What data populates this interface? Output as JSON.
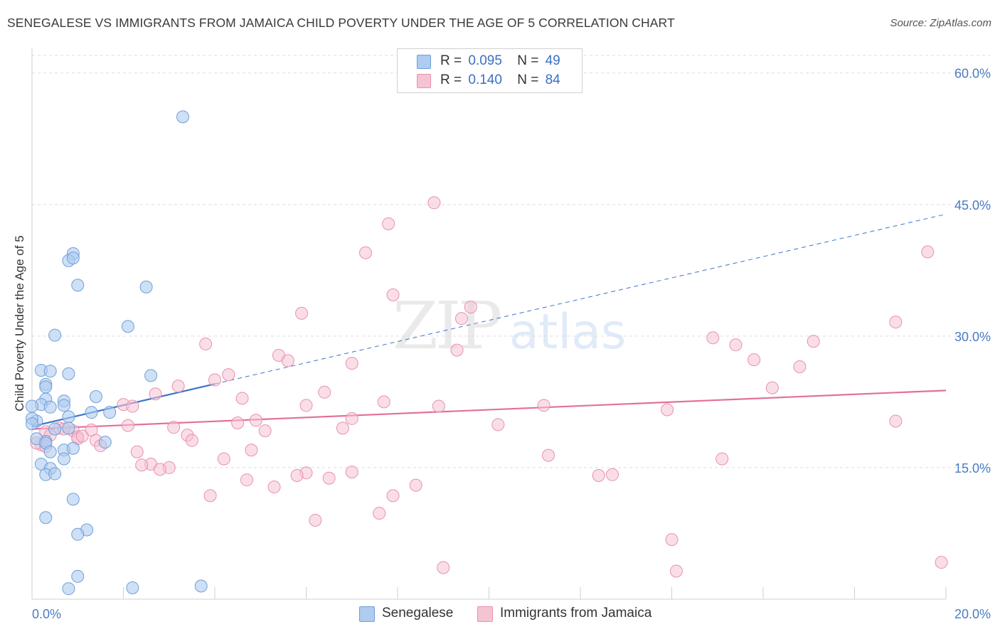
{
  "title": "SENEGALESE VS IMMIGRANTS FROM JAMAICA CHILD POVERTY UNDER THE AGE OF 5 CORRELATION CHART",
  "source": "Source: ZipAtlas.com",
  "watermark": {
    "zip": "ZIP",
    "atlas": "atlas"
  },
  "legend": {
    "row1": {
      "r_label": "R =",
      "r_value": "0.095",
      "n_label": "N =",
      "n_value": "49"
    },
    "row2": {
      "r_label": "R =",
      "r_value": "0.140",
      "n_label": "N =",
      "n_value": "84"
    }
  },
  "bottom_legend": {
    "series1": "Senegalese",
    "series2": "Immigrants from Jamaica"
  },
  "colors": {
    "blue_fill": "#aecbf0",
    "blue_stroke": "#6f9fd8",
    "blue_line": "#3b74c9",
    "pink_fill": "#f6c3d3",
    "pink_stroke": "#e891ad",
    "pink_line": "#e2709a",
    "tick_text": "#4a7cc4",
    "grid": "#dddddd"
  },
  "chart_data": {
    "type": "scatter",
    "title": "SENEGALESE VS IMMIGRANTS FROM JAMAICA CHILD POVERTY UNDER THE AGE OF 5 CORRELATION CHART",
    "xlabel": "",
    "ylabel": "Child Poverty Under the Age of 5",
    "xlim": [
      0,
      20
    ],
    "ylim": [
      0,
      62
    ],
    "x_tick_labels": [
      "0.0%",
      "20.0%"
    ],
    "y_ticks": [
      15,
      30,
      45,
      60
    ],
    "y_tick_labels": [
      "15.0%",
      "30.0%",
      "45.0%",
      "60.0%"
    ],
    "grid": true,
    "legend_position": "top-center",
    "series": [
      {
        "name": "Senegalese",
        "stats": {
          "R": 0.095,
          "N": 49
        },
        "trend": {
          "x0": 0,
          "y0": 19.7,
          "x1": 20,
          "y1": 43.9,
          "solid_until": 4.0
        },
        "points": [
          [
            3.3,
            55.0
          ],
          [
            0.9,
            39.4
          ],
          [
            0.8,
            38.6
          ],
          [
            0.9,
            38.9
          ],
          [
            1.0,
            35.8
          ],
          [
            2.5,
            35.6
          ],
          [
            2.1,
            31.1
          ],
          [
            0.5,
            30.1
          ],
          [
            0.2,
            26.1
          ],
          [
            0.4,
            26.0
          ],
          [
            0.8,
            25.7
          ],
          [
            2.6,
            25.5
          ],
          [
            0.3,
            24.5
          ],
          [
            0.3,
            24.2
          ],
          [
            1.4,
            23.1
          ],
          [
            0.3,
            22.8
          ],
          [
            0.7,
            22.6
          ],
          [
            0.2,
            22.2
          ],
          [
            0.7,
            22.1
          ],
          [
            0.4,
            21.9
          ],
          [
            0.0,
            22.0
          ],
          [
            1.7,
            21.3
          ],
          [
            1.3,
            21.3
          ],
          [
            0.8,
            20.8
          ],
          [
            0.1,
            20.3
          ],
          [
            0.0,
            20.6
          ],
          [
            0.0,
            20.0
          ],
          [
            0.5,
            19.4
          ],
          [
            0.8,
            19.5
          ],
          [
            0.3,
            18.0
          ],
          [
            0.1,
            18.3
          ],
          [
            1.6,
            17.9
          ],
          [
            0.3,
            17.8
          ],
          [
            0.4,
            16.8
          ],
          [
            0.7,
            17.0
          ],
          [
            0.9,
            17.2
          ],
          [
            0.7,
            16.0
          ],
          [
            0.2,
            15.4
          ],
          [
            0.4,
            14.9
          ],
          [
            0.3,
            14.2
          ],
          [
            0.5,
            14.3
          ],
          [
            0.9,
            11.4
          ],
          [
            0.3,
            9.3
          ],
          [
            1.2,
            7.9
          ],
          [
            1.0,
            7.4
          ],
          [
            1.0,
            2.6
          ],
          [
            0.8,
            1.2
          ],
          [
            2.2,
            1.3
          ],
          [
            3.7,
            1.5
          ]
        ]
      },
      {
        "name": "Immigrants from Jamaica",
        "stats": {
          "R": 0.14,
          "N": 84
        },
        "trend": {
          "x0": 0,
          "y0": 19.4,
          "x1": 20,
          "y1": 23.8
        },
        "points": [
          [
            8.8,
            45.2
          ],
          [
            7.8,
            42.8
          ],
          [
            7.3,
            39.5
          ],
          [
            19.6,
            39.6
          ],
          [
            7.9,
            34.7
          ],
          [
            9.6,
            33.3
          ],
          [
            5.9,
            32.6
          ],
          [
            9.4,
            32.0
          ],
          [
            18.9,
            31.6
          ],
          [
            14.9,
            29.8
          ],
          [
            15.4,
            29.0
          ],
          [
            3.8,
            29.1
          ],
          [
            17.1,
            29.4
          ],
          [
            5.4,
            27.8
          ],
          [
            9.3,
            28.4
          ],
          [
            5.6,
            27.2
          ],
          [
            7.0,
            26.9
          ],
          [
            15.8,
            27.3
          ],
          [
            16.8,
            26.5
          ],
          [
            4.3,
            25.6
          ],
          [
            4.0,
            25.0
          ],
          [
            16.2,
            24.1
          ],
          [
            3.2,
            24.3
          ],
          [
            6.4,
            23.6
          ],
          [
            2.7,
            23.4
          ],
          [
            4.6,
            22.9
          ],
          [
            7.7,
            22.5
          ],
          [
            11.2,
            22.1
          ],
          [
            8.9,
            22.0
          ],
          [
            6.0,
            22.1
          ],
          [
            2.0,
            22.2
          ],
          [
            2.2,
            22.0
          ],
          [
            13.9,
            21.6
          ],
          [
            7.0,
            20.6
          ],
          [
            4.9,
            20.4
          ],
          [
            18.9,
            20.3
          ],
          [
            10.2,
            19.9
          ],
          [
            2.1,
            19.8
          ],
          [
            4.5,
            20.1
          ],
          [
            6.8,
            19.5
          ],
          [
            3.1,
            19.6
          ],
          [
            5.1,
            19.2
          ],
          [
            1.3,
            19.3
          ],
          [
            0.3,
            19.1
          ],
          [
            0.4,
            18.7
          ],
          [
            0.6,
            19.5
          ],
          [
            0.9,
            19.2
          ],
          [
            1.0,
            18.5
          ],
          [
            0.2,
            17.6
          ],
          [
            1.4,
            18.1
          ],
          [
            1.0,
            18.3
          ],
          [
            3.4,
            18.7
          ],
          [
            3.5,
            18.1
          ],
          [
            1.5,
            17.5
          ],
          [
            0.1,
            17.8
          ],
          [
            0.3,
            17.4
          ],
          [
            4.8,
            17.0
          ],
          [
            2.3,
            16.8
          ],
          [
            11.3,
            16.4
          ],
          [
            15.1,
            16.0
          ],
          [
            4.2,
            16.0
          ],
          [
            2.6,
            15.4
          ],
          [
            2.4,
            15.3
          ],
          [
            3.0,
            15.0
          ],
          [
            2.8,
            14.8
          ],
          [
            6.0,
            14.4
          ],
          [
            5.8,
            14.1
          ],
          [
            7.0,
            14.5
          ],
          [
            12.4,
            14.1
          ],
          [
            12.7,
            14.2
          ],
          [
            6.5,
            13.8
          ],
          [
            4.7,
            13.6
          ],
          [
            8.4,
            13.0
          ],
          [
            5.3,
            12.8
          ],
          [
            3.9,
            11.8
          ],
          [
            7.9,
            11.8
          ],
          [
            7.6,
            9.8
          ],
          [
            6.2,
            9.0
          ],
          [
            14.0,
            6.8
          ],
          [
            9.0,
            3.6
          ],
          [
            14.1,
            3.2
          ],
          [
            19.9,
            4.2
          ],
          [
            1.1,
            18.6
          ],
          [
            0.7,
            19.4
          ]
        ]
      }
    ]
  }
}
